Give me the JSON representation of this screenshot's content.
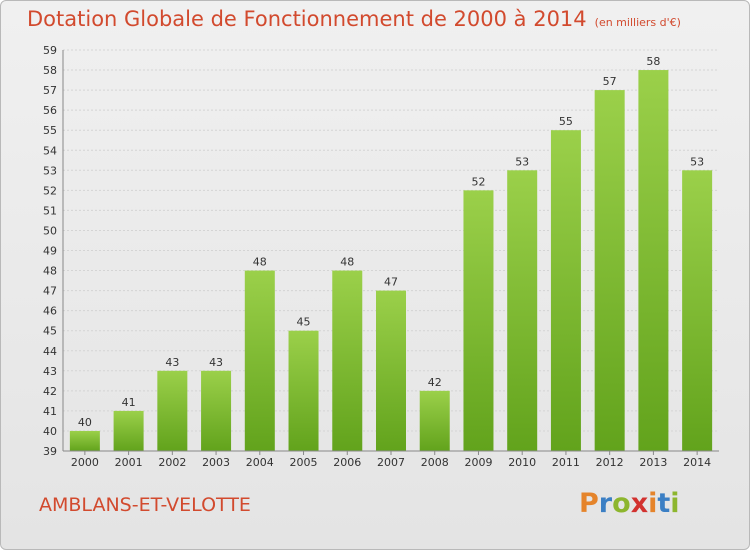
{
  "title": "Dotation Globale de Fonctionnement de 2000 à 2014",
  "units": "(en milliers d'€)",
  "place": "AMBLANS-ET-VELOTTE",
  "logo": {
    "text": "Proxiti",
    "colors": [
      "#e5842b",
      "#3b7fc4",
      "#8db62e",
      "#d2322f",
      "#e5842b",
      "#3b7fc4",
      "#8db62e"
    ]
  },
  "colors": {
    "title": "#d24a2e",
    "bar_top": "#9bd04a",
    "bar_bottom": "#62a31c"
  },
  "chart_data": {
    "type": "bar",
    "categories": [
      "2000",
      "2001",
      "2002",
      "2003",
      "2004",
      "2005",
      "2006",
      "2007",
      "2008",
      "2009",
      "2010",
      "2011",
      "2012",
      "2013",
      "2014"
    ],
    "values": [
      40,
      41,
      43,
      43,
      48,
      45,
      48,
      47,
      42,
      52,
      53,
      55,
      57,
      58,
      53
    ],
    "ylim": [
      39,
      59
    ],
    "yticks": [
      39,
      40,
      41,
      42,
      43,
      44,
      45,
      46,
      47,
      48,
      49,
      50,
      51,
      52,
      53,
      54,
      55,
      56,
      57,
      58,
      59
    ],
    "grid": true
  }
}
